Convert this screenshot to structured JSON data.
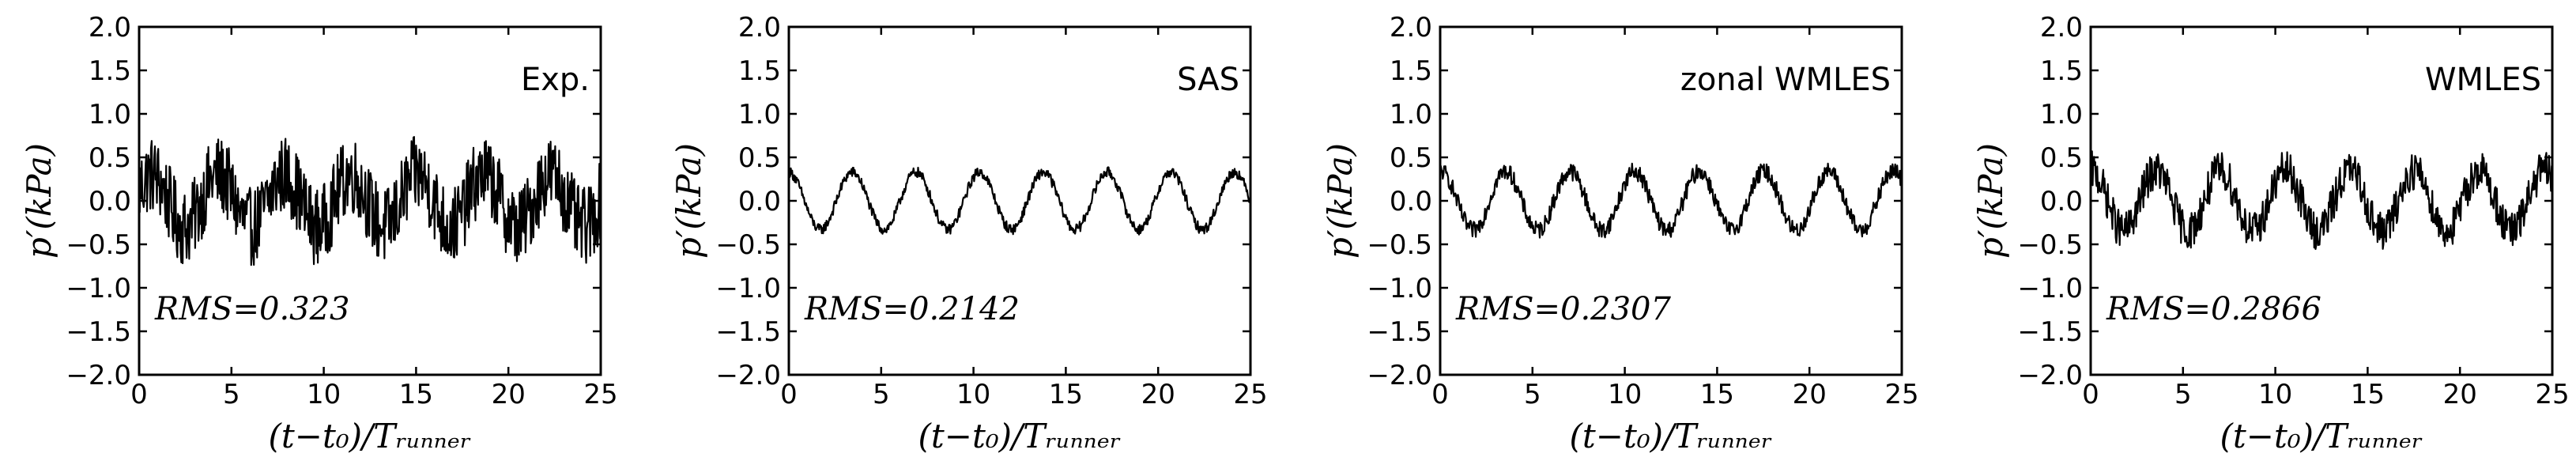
{
  "chart_data": [
    {
      "type": "line",
      "panel": "Exp.",
      "title": "",
      "xlabel": "(t−t₀)/Tᵣᵤₙₙₑᵣ",
      "ylabel": "p′(kPa)",
      "xlim": [
        0,
        25
      ],
      "ylim": [
        -2.0,
        2.0
      ],
      "xticks": [
        "0",
        "5",
        "10",
        "15",
        "20",
        "25"
      ],
      "yticks": [
        "2.0",
        "1.5",
        "1.0",
        "0.5",
        "0.0",
        "−0.5",
        "−1.0",
        "−1.5",
        "−2.0"
      ],
      "rms_text": "RMS=0.323",
      "rms_value": 0.323,
      "series": [
        {
          "name": "Exp.",
          "signal": {
            "period": 3.6,
            "phase": 0.4,
            "base_amp": 0.3,
            "noise_amp": 0.45,
            "mean": 0.0,
            "samples": 700
          }
        }
      ]
    },
    {
      "type": "line",
      "panel": "SAS",
      "title": "",
      "xlabel": "(t−t₀)/Tᵣᵤₙₙₑᵣ",
      "ylabel": "p′(kPa)",
      "xlim": [
        0,
        25
      ],
      "ylim": [
        -2.0,
        2.0
      ],
      "xticks": [
        "0",
        "5",
        "10",
        "15",
        "20",
        "25"
      ],
      "yticks": [
        "2.0",
        "1.5",
        "1.0",
        "0.5",
        "0.0",
        "−0.5",
        "−1.0",
        "−1.5",
        "−2.0"
      ],
      "rms_text": "RMS=0.2142",
      "rms_value": 0.2142,
      "series": [
        {
          "name": "SAS",
          "signal": {
            "period": 3.45,
            "phase": 1.6,
            "base_amp": 0.33,
            "noise_amp": 0.06,
            "mean": 0.0,
            "samples": 700
          }
        }
      ]
    },
    {
      "type": "line",
      "panel": "zonal WMLES",
      "title": "",
      "xlabel": "(t−t₀)/Tᵣᵤₙₙₑᵣ",
      "ylabel": "p′(kPa)",
      "xlim": [
        0,
        25
      ],
      "ylim": [
        -2.0,
        2.0
      ],
      "xticks": [
        "0",
        "5",
        "10",
        "15",
        "20",
        "25"
      ],
      "yticks": [
        "2.0",
        "1.5",
        "1.0",
        "0.5",
        "0.0",
        "−0.5",
        "−1.0",
        "−1.5",
        "−2.0"
      ],
      "rms_text": "RMS=0.2307",
      "rms_value": 0.2307,
      "series": [
        {
          "name": "zonal WMLES",
          "signal": {
            "period": 3.5,
            "phase": 1.5,
            "base_amp": 0.34,
            "noise_amp": 0.1,
            "mean": 0.0,
            "samples": 700
          }
        }
      ]
    },
    {
      "type": "line",
      "panel": "WMLES",
      "title": "",
      "xlabel": "(t−t₀)/Tᵣᵤₙₙₑᵣ",
      "ylabel": "p′(kPa)",
      "xlim": [
        0,
        25
      ],
      "ylim": [
        -2.0,
        2.0
      ],
      "xticks": [
        "0",
        "5",
        "10",
        "15",
        "20",
        "25"
      ],
      "yticks": [
        "2.0",
        "1.5",
        "1.0",
        "0.5",
        "0.0",
        "−0.5",
        "−1.0",
        "−1.5",
        "−2.0"
      ],
      "rms_text": "RMS=0.2866",
      "rms_value": 0.2866,
      "series": [
        {
          "name": "WMLES",
          "signal": {
            "period": 3.5,
            "phase": 1.5,
            "base_amp": 0.35,
            "noise_amp": 0.22,
            "mean": 0.0,
            "samples": 700
          }
        }
      ]
    }
  ]
}
